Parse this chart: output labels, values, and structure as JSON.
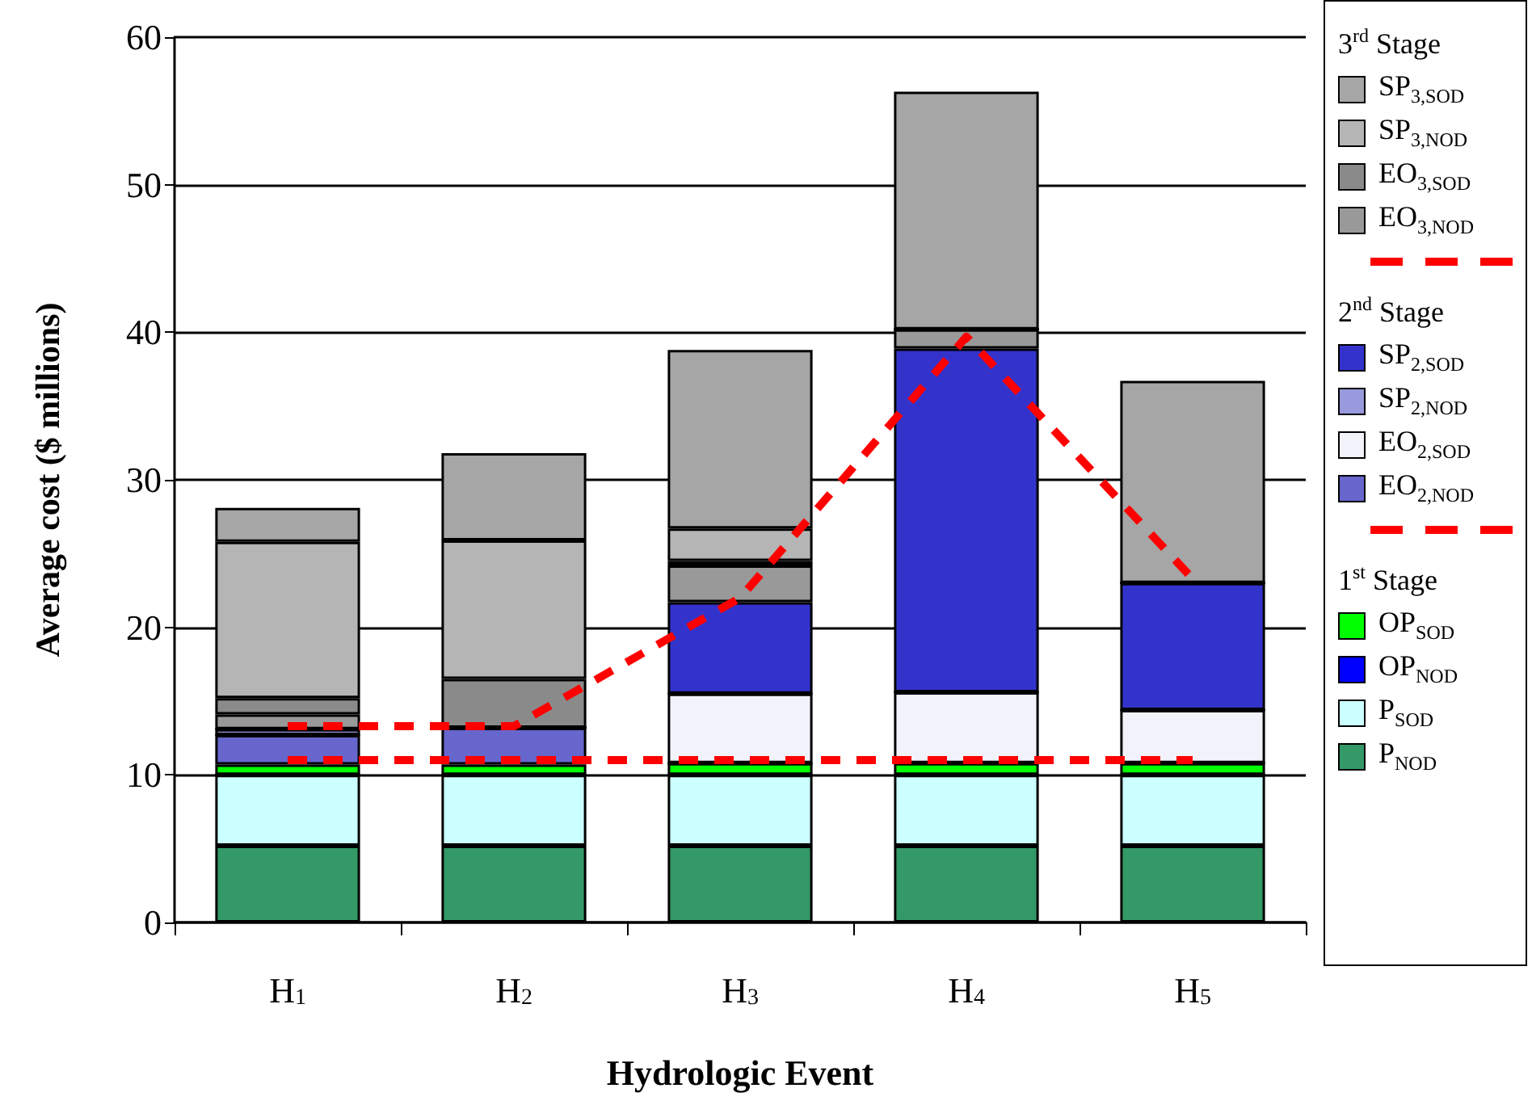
{
  "chart_data": {
    "type": "bar",
    "stacked": true,
    "xlabel": "Hydrologic Event",
    "ylabel": "Average cost ($ millions)",
    "categories": [
      "H$_{1}$",
      "H$_{2}$",
      "H$_{3}$",
      "H$_{4}$",
      "H$_{5}$"
    ],
    "ylim": [
      0,
      60
    ],
    "yticks": [
      0,
      10,
      20,
      30,
      40,
      50,
      60
    ],
    "grid": "y",
    "legend": "right",
    "annotations": [
      "3$^{rd}$ Stage",
      "2$^{nd}$ Stage",
      "1$^{st}$ Stage"
    ],
    "series": [
      {
        "name": "P$_{NOD}$",
        "color": "#339966",
        "values": [
          5.2,
          5.2,
          5.2,
          5.2,
          5.2
        ]
      },
      {
        "name": "P$_{SOD}$",
        "color": "#ccffff",
        "values": [
          4.8,
          4.8,
          4.8,
          4.8,
          4.8
        ]
      },
      {
        "name": "OP$_{NOD}$",
        "color": "#0000ff",
        "values": [
          0,
          0,
          0,
          0,
          0
        ]
      },
      {
        "name": "OP$_{SOD}$",
        "color": "#00ff00",
        "values": [
          0.7,
          0.7,
          0.8,
          0.8,
          0.8
        ]
      },
      {
        "name": "EO$_{2,NOD}$",
        "color": "#6666cc",
        "values": [
          2.0,
          2.5,
          0,
          0,
          0
        ]
      },
      {
        "name": "EO$_{2,SOD}$",
        "color": "#f2f2fb",
        "values": [
          0,
          0,
          4.7,
          4.8,
          3.6
        ]
      },
      {
        "name": "SP$_{2,NOD}$",
        "color": "#9999dd",
        "values": [
          0.4,
          0,
          0,
          0,
          0
        ]
      },
      {
        "name": "SP$_{2,SOD}$",
        "color": "#3333cc",
        "values": [
          0,
          0,
          6.2,
          23.3,
          8.6
        ]
      },
      {
        "name": "EO$_{3,NOD}$",
        "color": "#999999",
        "values": [
          1.0,
          null,
          2.5,
          1.3,
          null
        ]
      },
      {
        "name": "EO$_{3,SOD}$",
        "color": "#8a8a8a",
        "values": [
          1.1,
          3.3,
          0.3,
          0,
          0
        ]
      },
      {
        "name": "SP$_{3,NOD}$",
        "color": "#b5b5b5",
        "values": [
          10.6,
          9.4,
          2.2,
          0,
          0
        ]
      },
      {
        "name": "SP$_{3,SOD}$",
        "color": "#a6a6a6",
        "values": [
          2.3,
          5.9,
          12.1,
          16.1,
          13.7
        ]
      },
      {
        "type": "line",
        "color": "#ff0000",
        "line_style": "dashed",
        "marker": "none",
        "values": [
          11.0,
          11.0,
          11.0,
          11.0,
          11.0
        ]
      },
      {
        "type": "line",
        "color": "#ff0000",
        "line_style": "dashed",
        "marker": "none",
        "values": [
          13.3,
          13.3,
          22.0,
          39.7,
          23.3
        ]
      }
    ]
  }
}
